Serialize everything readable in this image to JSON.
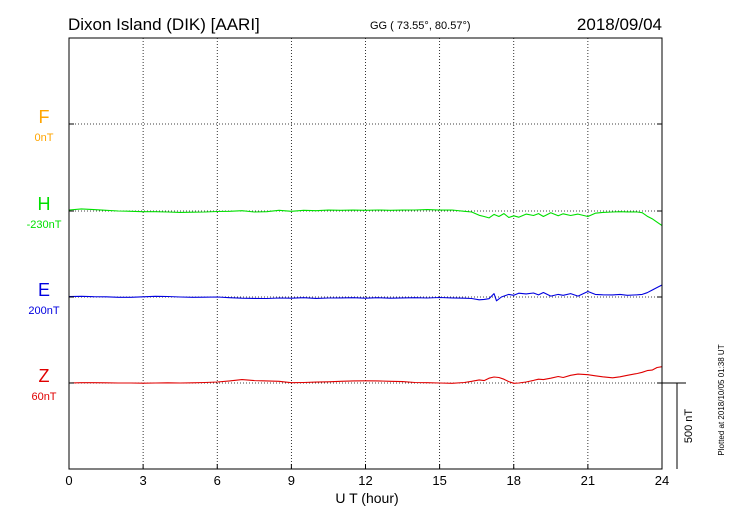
{
  "header": {
    "title": "Dixon Island (DIK)  [AARI]",
    "coords": "GG ( 73.55°,  80.57°)",
    "date": "2018/09/04"
  },
  "footnote": "Plotted at 2018/10/05 01:38 UT",
  "chart_data": {
    "type": "line",
    "xlabel": "U T (hour)",
    "xlim": [
      0,
      24
    ],
    "xticks": [
      0,
      3,
      6,
      9,
      12,
      15,
      18,
      21,
      24
    ],
    "scale_bar_label": "500 nT",
    "grid": "dotted",
    "series": [
      {
        "name": "F",
        "offset": "0nT",
        "color": "#ffa500",
        "baseline_nT": 0,
        "x": [],
        "y": []
      },
      {
        "name": "H",
        "offset": "-230nT",
        "color": "#00e000",
        "baseline_nT": -230,
        "x": [
          0,
          0.5,
          1,
          1.5,
          2,
          2.5,
          3,
          3.5,
          4,
          4.5,
          5,
          5.5,
          6,
          6.5,
          7,
          7.5,
          8,
          8.5,
          9,
          9.5,
          10,
          10.5,
          11,
          11.5,
          12,
          12.5,
          13,
          13.5,
          14,
          14.5,
          15,
          15.5,
          16,
          16.3,
          16.6,
          16.8,
          17,
          17.2,
          17.4,
          17.6,
          17.8,
          18,
          18.2,
          18.5,
          18.8,
          19,
          19.2,
          19.5,
          19.8,
          20,
          20.3,
          20.6,
          21,
          21.3,
          21.6,
          22,
          22.3,
          22.6,
          23,
          23.2,
          23.4,
          23.6,
          23.8,
          24
        ],
        "y": [
          -224,
          -218,
          -222,
          -226,
          -230,
          -232,
          -234,
          -234,
          -236,
          -238,
          -237,
          -236,
          -233,
          -232,
          -228,
          -236,
          -234,
          -226,
          -232,
          -226,
          -228,
          -225,
          -226,
          -225,
          -226,
          -224,
          -226,
          -225,
          -224,
          -222,
          -225,
          -224,
          -232,
          -236,
          -255,
          -262,
          -270,
          -250,
          -262,
          -245,
          -268,
          -258,
          -266,
          -248,
          -256,
          -245,
          -262,
          -240,
          -258,
          -246,
          -256,
          -248,
          -262,
          -243,
          -238,
          -236,
          -234,
          -235,
          -236,
          -240,
          -260,
          -275,
          -295,
          -315
        ]
      },
      {
        "name": "E",
        "offset": "200nT",
        "color": "#0000e0",
        "baseline_nT": 200,
        "x": [
          0,
          0.5,
          1,
          1.5,
          2,
          2.5,
          3,
          3.5,
          4,
          4.5,
          5,
          5.5,
          6,
          6.5,
          7,
          7.5,
          8,
          8.5,
          9,
          9.5,
          10,
          10.5,
          11,
          11.5,
          12,
          12.5,
          13,
          13.5,
          14,
          14.5,
          15,
          15.5,
          16,
          16.3,
          16.6,
          16.8,
          17,
          17.2,
          17.3,
          17.5,
          17.8,
          18,
          18.2,
          18.5,
          18.8,
          19,
          19.2,
          19.5,
          19.8,
          20,
          20.3,
          20.6,
          21,
          21.3,
          21.6,
          22,
          22.3,
          22.6,
          23,
          23.2,
          23.4,
          23.6,
          23.8,
          24
        ],
        "y": [
          203,
          204,
          202,
          201,
          198,
          198,
          201,
          204,
          203,
          200,
          198,
          199,
          200,
          196,
          193,
          192,
          191,
          194,
          193,
          196,
          192,
          194,
          195,
          196,
          193,
          196,
          193,
          195,
          196,
          194,
          197,
          195,
          193,
          191,
          184,
          186,
          190,
          220,
          178,
          200,
          215,
          210,
          222,
          218,
          223,
          212,
          226,
          205,
          215,
          210,
          220,
          205,
          232,
          215,
          213,
          212,
          215,
          210,
          213,
          215,
          225,
          240,
          255,
          270
        ]
      },
      {
        "name": "Z",
        "offset": "60nT",
        "color": "#e00000",
        "baseline_nT": 60,
        "x": [
          0,
          0.5,
          1,
          1.5,
          2,
          2.5,
          3,
          3.5,
          4,
          4.5,
          5,
          5.5,
          6,
          6.5,
          7,
          7.5,
          8,
          8.5,
          9,
          9.5,
          10,
          10.5,
          11,
          11.5,
          12,
          12.5,
          13,
          13.5,
          14,
          14.5,
          15,
          15.5,
          16,
          16.3,
          16.6,
          16.8,
          17,
          17.2,
          17.4,
          17.6,
          17.8,
          18,
          18.2,
          18.5,
          18.8,
          19,
          19.2,
          19.5,
          19.8,
          20,
          20.3,
          20.6,
          21,
          21.3,
          21.6,
          22,
          22.3,
          22.6,
          23,
          23.2,
          23.4,
          23.6,
          23.8,
          24
        ],
        "y": [
          60,
          62,
          62,
          61,
          60,
          60,
          59,
          60,
          61,
          60,
          61,
          63,
          66,
          72,
          80,
          74,
          72,
          70,
          62,
          63,
          65,
          67,
          70,
          72,
          73,
          72,
          70,
          68,
          63,
          62,
          60,
          58,
          63,
          70,
          78,
          74,
          88,
          95,
          92,
          82,
          68,
          58,
          60,
          66,
          75,
          82,
          80,
          88,
          98,
          92,
          105,
          112,
          108,
          102,
          96,
          90,
          96,
          105,
          115,
          122,
          132,
          135,
          150,
          155
        ]
      }
    ]
  }
}
